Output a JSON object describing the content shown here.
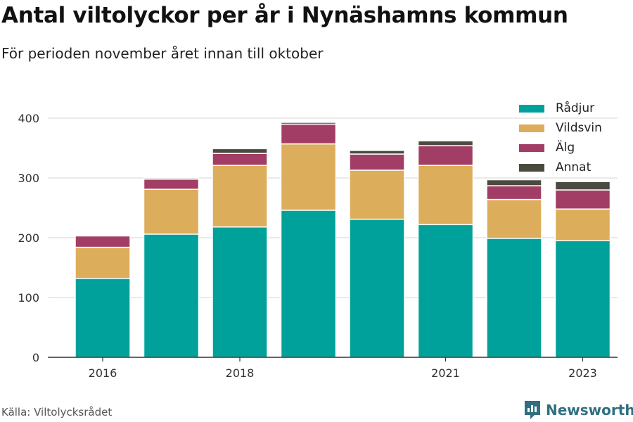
{
  "header": {
    "title": "Antal viltolyckor per år i Nynäshamns kommun",
    "subtitle": "För perioden november året innan till oktober"
  },
  "footer": {
    "source": "Källa: Viltolycksrådet",
    "brand": "Newsworthy"
  },
  "colors": {
    "Rådjur": "#00a19a",
    "Vildsvin": "#dcad5a",
    "Älg": "#a23e66",
    "Annat": "#4a4a3e",
    "grid": "#dddddd",
    "axis": "#333333",
    "brand": "#2f6f7f"
  },
  "chart_data": {
    "type": "bar",
    "stacked": true,
    "categories": [
      "2016",
      "2017",
      "2018",
      "2019",
      "2020",
      "2021",
      "2022",
      "2023"
    ],
    "x_tick_labels": [
      "2016",
      "",
      "2018",
      "",
      "",
      "2021",
      "",
      "2023"
    ],
    "series": [
      {
        "name": "Rådjur",
        "values": [
          132,
          206,
          218,
          246,
          231,
          222,
          199,
          195
        ]
      },
      {
        "name": "Vildsvin",
        "values": [
          52,
          75,
          103,
          111,
          82,
          99,
          65,
          53
        ]
      },
      {
        "name": "Älg",
        "values": [
          19,
          17,
          20,
          33,
          27,
          33,
          23,
          32
        ]
      },
      {
        "name": "Annat",
        "values": [
          0,
          2,
          8,
          3,
          6,
          8,
          10,
          14
        ]
      }
    ],
    "y_ticks": [
      0,
      100,
      200,
      300,
      400
    ],
    "ylim": [
      0,
      430
    ],
    "grid": true,
    "legend_position": "top-right"
  }
}
